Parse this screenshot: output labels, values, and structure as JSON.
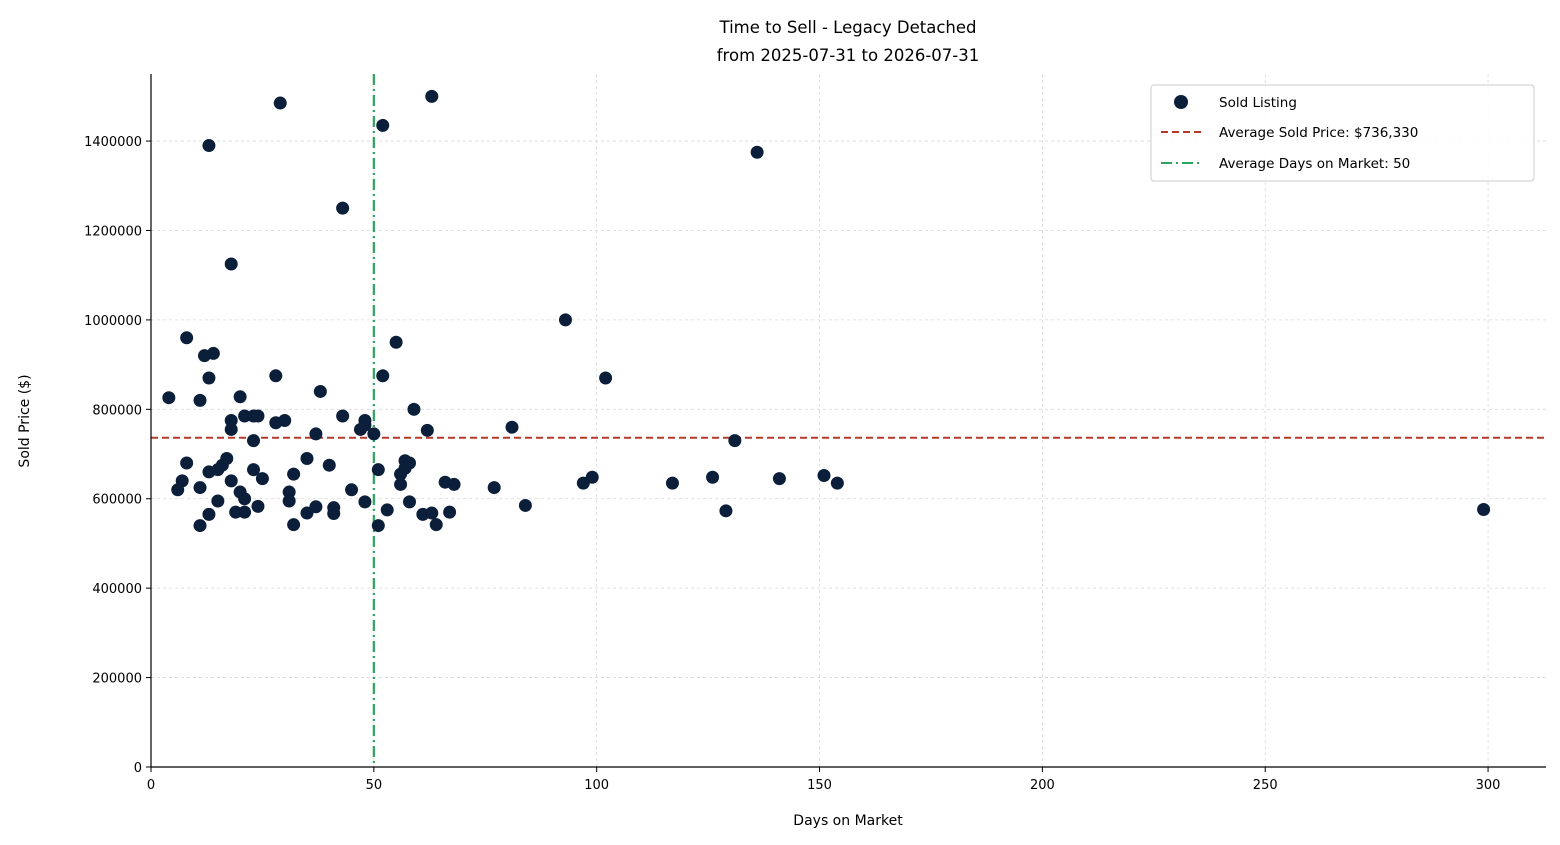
{
  "chart_data": {
    "type": "scatter",
    "title": "Time to Sell - Legacy Detached",
    "subtitle": "from 2025-07-31 to 2026-07-31",
    "xlabel": "Days on Market",
    "ylabel": "Sold Price ($)",
    "xlim": [
      0,
      313
    ],
    "ylim": [
      0,
      1550000
    ],
    "xticks": [
      0,
      50,
      100,
      150,
      200,
      250,
      300
    ],
    "yticks": [
      0,
      200000,
      400000,
      600000,
      800000,
      1000000,
      1200000,
      1400000
    ],
    "grid": true,
    "legend_position": "top-right",
    "colors": {
      "points": "#0b1f3a",
      "avg_price": "#b53a2a",
      "avg_days": "#2ca55e"
    },
    "series": [
      {
        "name": "Sold Listing",
        "points": [
          [
            4,
            826000
          ],
          [
            6,
            620000
          ],
          [
            7,
            640000
          ],
          [
            8,
            960000
          ],
          [
            8,
            680000
          ],
          [
            11,
            820000
          ],
          [
            11,
            625000
          ],
          [
            11,
            540000
          ],
          [
            12,
            920000
          ],
          [
            13,
            1390000
          ],
          [
            13,
            870000
          ],
          [
            13,
            660000
          ],
          [
            13,
            565000
          ],
          [
            14,
            925000
          ],
          [
            15,
            665000
          ],
          [
            15,
            595000
          ],
          [
            16,
            675000
          ],
          [
            17,
            690000
          ],
          [
            18,
            1125000
          ],
          [
            18,
            775000
          ],
          [
            18,
            755000
          ],
          [
            18,
            640000
          ],
          [
            19,
            570000
          ],
          [
            20,
            828000
          ],
          [
            20,
            615000
          ],
          [
            21,
            785000
          ],
          [
            21,
            600000
          ],
          [
            21,
            570000
          ],
          [
            23,
            785000
          ],
          [
            23,
            730000
          ],
          [
            23,
            665000
          ],
          [
            24,
            785000
          ],
          [
            24,
            583000
          ],
          [
            25,
            645000
          ],
          [
            28,
            875000
          ],
          [
            28,
            770000
          ],
          [
            29,
            1485000
          ],
          [
            30,
            775000
          ],
          [
            31,
            615000
          ],
          [
            31,
            595000
          ],
          [
            32,
            655000
          ],
          [
            32,
            542000
          ],
          [
            35,
            690000
          ],
          [
            35,
            568000
          ],
          [
            37,
            745000
          ],
          [
            37,
            582000
          ],
          [
            38,
            840000
          ],
          [
            40,
            675000
          ],
          [
            41,
            580000
          ],
          [
            41,
            567000
          ],
          [
            43,
            1250000
          ],
          [
            43,
            785000
          ],
          [
            45,
            620000
          ],
          [
            47,
            755000
          ],
          [
            48,
            775000
          ],
          [
            48,
            765000
          ],
          [
            48,
            593000
          ],
          [
            50,
            745000
          ],
          [
            51,
            665000
          ],
          [
            51,
            540000
          ],
          [
            52,
            1435000
          ],
          [
            52,
            875000
          ],
          [
            53,
            575000
          ],
          [
            55,
            950000
          ],
          [
            56,
            655000
          ],
          [
            56,
            632000
          ],
          [
            57,
            685000
          ],
          [
            57,
            668000
          ],
          [
            58,
            680000
          ],
          [
            58,
            593000
          ],
          [
            59,
            800000
          ],
          [
            61,
            565000
          ],
          [
            62,
            753000
          ],
          [
            63,
            1500000
          ],
          [
            63,
            568000
          ],
          [
            64,
            542000
          ],
          [
            66,
            637000
          ],
          [
            67,
            570000
          ],
          [
            68,
            632000
          ],
          [
            77,
            625000
          ],
          [
            81,
            760000
          ],
          [
            84,
            585000
          ],
          [
            93,
            1000000
          ],
          [
            97,
            635000
          ],
          [
            99,
            648000
          ],
          [
            102,
            870000
          ],
          [
            117,
            635000
          ],
          [
            126,
            648000
          ],
          [
            129,
            573000
          ],
          [
            131,
            730000
          ],
          [
            136,
            1375000
          ],
          [
            141,
            645000
          ],
          [
            151,
            652000
          ],
          [
            154,
            635000
          ],
          [
            299,
            576000
          ]
        ]
      },
      {
        "name": "Average Sold Price: $736,330",
        "type": "hline",
        "y": 736330
      },
      {
        "name": "Average Days on Market: 50",
        "type": "vline",
        "x": 50
      }
    ]
  }
}
